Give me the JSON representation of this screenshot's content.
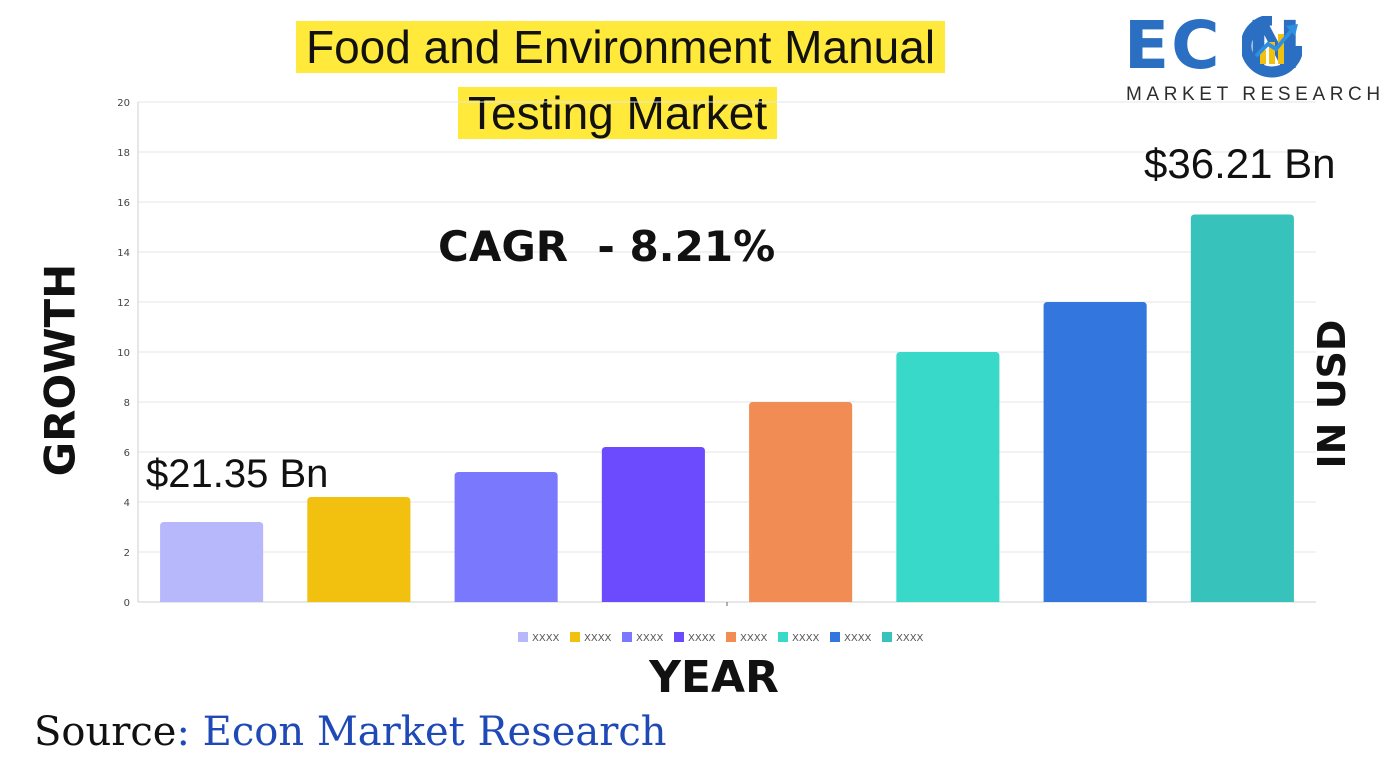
{
  "title": {
    "line1": "Food and Environment Manual",
    "line2": "Testing Market"
  },
  "logo": {
    "brand": "EC N",
    "tagline": "MARKET RESEARCH",
    "color": "#2a6fc1"
  },
  "annotations": {
    "cagr": "CAGR  - 8.21%",
    "start_value": "$21.35 Bn",
    "end_value": "$36.21 Bn"
  },
  "source": {
    "prefix": "Source",
    "separator": ": ",
    "name": "Econ Market Research"
  },
  "chart_data": {
    "type": "bar",
    "title": "",
    "xlabel": "YEAR",
    "ylabel": "GROWTH",
    "y2label": "IN USD",
    "ylim": [
      0,
      20
    ],
    "yticks": [
      0,
      2,
      4,
      6,
      8,
      10,
      12,
      14,
      16,
      18,
      20
    ],
    "grid": true,
    "legend_position": "bottom",
    "categories": [
      "XXXX",
      "XXXX",
      "XXXX",
      "XXXX",
      "XXXX",
      "XXXX",
      "XXXX",
      "XXXX"
    ],
    "values": [
      3.2,
      4.2,
      5.2,
      6.2,
      8.0,
      10.0,
      12.0,
      15.5
    ],
    "colors": [
      "#b7b7fb",
      "#f2c00f",
      "#7a78fd",
      "#6c4afd",
      "#f28c55",
      "#38d9c9",
      "#3276de",
      "#37c3bb"
    ]
  }
}
